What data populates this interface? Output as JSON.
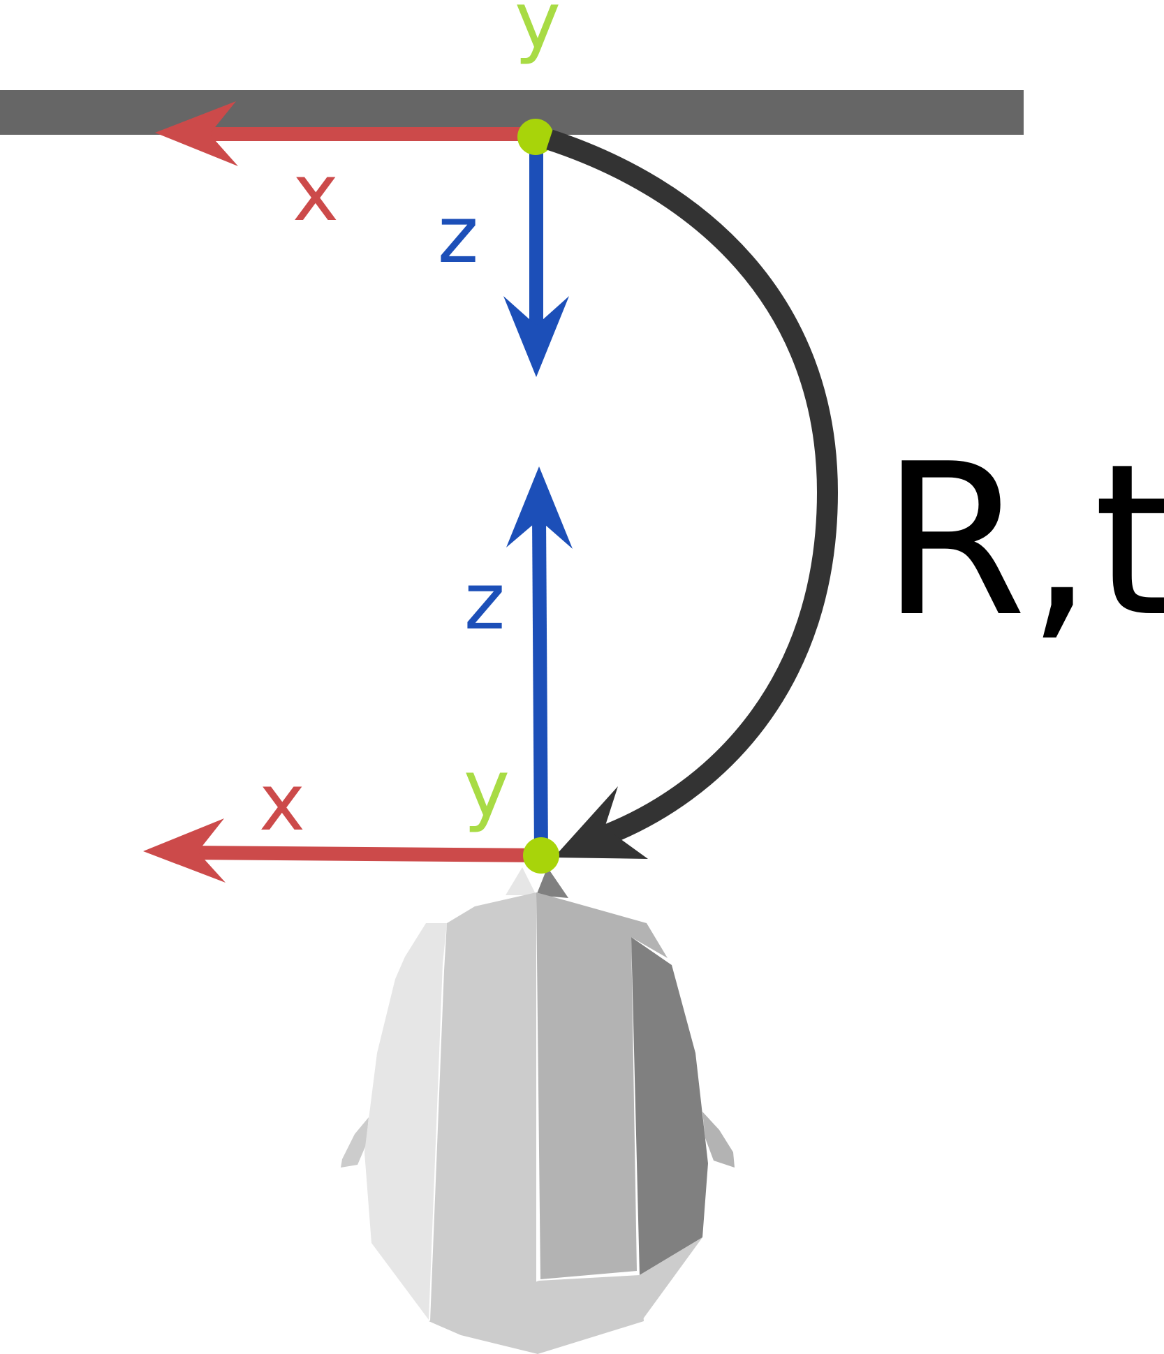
{
  "colors": {
    "x_axis": "#cc4a4a",
    "y_axis": "#a8db44",
    "z_axis": "#1c4fb8",
    "origin_dot": "#a8d40a",
    "bar": "#666666",
    "transform_arrow": "#333333",
    "label_text": "#000000",
    "head_light": "#e6e6e6",
    "head_mid": "#cccccc",
    "head_dark": "#b3b3b3",
    "head_darkest": "#808080"
  },
  "top_frame": {
    "x_label": "x",
    "y_label": "y",
    "z_label": "z"
  },
  "bottom_frame": {
    "x_label": "x",
    "y_label": "y",
    "z_label": "z"
  },
  "transform": {
    "label": "R,t"
  }
}
